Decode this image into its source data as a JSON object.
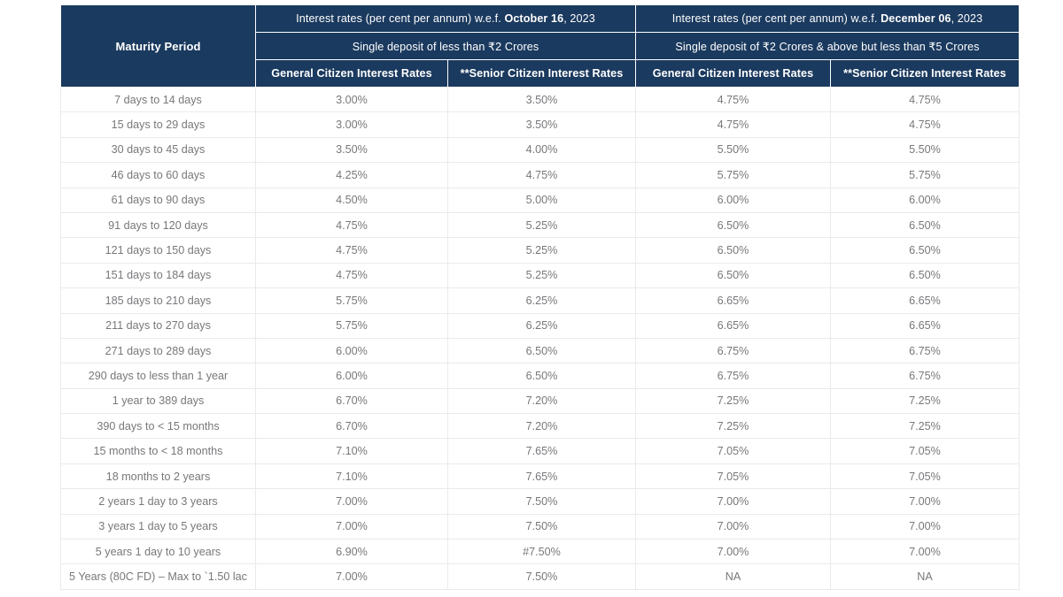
{
  "colors": {
    "header_bg": "#1b3a5f",
    "header_text": "#ffffff",
    "body_text": "#77787b",
    "row_border": "#e9eaec"
  },
  "header": {
    "maturity_period_label": "Maturity Period",
    "sections": [
      {
        "rate_title_prefix": "Interest rates (per cent per annum) w.e.f. ",
        "rate_title_date": "October 16",
        "rate_title_suffix": ", 2023",
        "deposit_label": "Single deposit of less than ₹2 Crores",
        "general_label": "General Citizen Interest Rates",
        "senior_label": "**Senior Citizen Interest Rates"
      },
      {
        "rate_title_prefix": "Interest rates (per cent per annum) w.e.f. ",
        "rate_title_date": "December 06",
        "rate_title_suffix": ", 2023",
        "deposit_label": "Single deposit of ₹2 Crores & above but less than ₹5 Crores",
        "general_label": "General Citizen Interest Rates",
        "senior_label": "**Senior Citizen Interest Rates"
      }
    ]
  },
  "rows": [
    {
      "maturity": "7 days to 14 days",
      "rates": [
        "3.00%",
        "3.50%",
        "4.75%",
        "4.75%"
      ]
    },
    {
      "maturity": "15 days to 29 days",
      "rates": [
        "3.00%",
        "3.50%",
        "4.75%",
        "4.75%"
      ]
    },
    {
      "maturity": "30 days to 45 days",
      "rates": [
        "3.50%",
        "4.00%",
        "5.50%",
        "5.50%"
      ]
    },
    {
      "maturity": "46 days to 60 days",
      "rates": [
        "4.25%",
        "4.75%",
        "5.75%",
        "5.75%"
      ]
    },
    {
      "maturity": "61 days to 90 days",
      "rates": [
        "4.50%",
        "5.00%",
        "6.00%",
        "6.00%"
      ]
    },
    {
      "maturity": "91 days to 120 days",
      "rates": [
        "4.75%",
        "5.25%",
        "6.50%",
        "6.50%"
      ]
    },
    {
      "maturity": "121 days to 150 days",
      "rates": [
        "4.75%",
        "5.25%",
        "6.50%",
        "6.50%"
      ]
    },
    {
      "maturity": "151 days to 184 days",
      "rates": [
        "4.75%",
        "5.25%",
        "6.50%",
        "6.50%"
      ]
    },
    {
      "maturity": "185 days to 210 days",
      "rates": [
        "5.75%",
        "6.25%",
        "6.65%",
        "6.65%"
      ]
    },
    {
      "maturity": "211 days to 270 days",
      "rates": [
        "5.75%",
        "6.25%",
        "6.65%",
        "6.65%"
      ]
    },
    {
      "maturity": "271 days to 289 days",
      "rates": [
        "6.00%",
        "6.50%",
        "6.75%",
        "6.75%"
      ]
    },
    {
      "maturity": "290 days to less than 1 year",
      "rates": [
        "6.00%",
        "6.50%",
        "6.75%",
        "6.75%"
      ]
    },
    {
      "maturity": "1 year to 389 days",
      "rates": [
        "6.70%",
        "7.20%",
        "7.25%",
        "7.25%"
      ]
    },
    {
      "maturity": "390 days to < 15 months",
      "rates": [
        "6.70%",
        "7.20%",
        "7.25%",
        "7.25%"
      ]
    },
    {
      "maturity": "15 months to < 18 months",
      "rates": [
        "7.10%",
        "7.65%",
        "7.05%",
        "7.05%"
      ]
    },
    {
      "maturity": "18 months to 2 years",
      "rates": [
        "7.10%",
        "7.65%",
        "7.05%",
        "7.05%"
      ]
    },
    {
      "maturity": "2 years 1 day to 3 years",
      "rates": [
        "7.00%",
        "7.50%",
        "7.00%",
        "7.00%"
      ]
    },
    {
      "maturity": "3 years 1 day to 5 years",
      "rates": [
        "7.00%",
        "7.50%",
        "7.00%",
        "7.00%"
      ]
    },
    {
      "maturity": "5 years 1 day to 10 years",
      "rates": [
        "6.90%",
        "#7.50%",
        "7.00%",
        "7.00%"
      ]
    },
    {
      "maturity": "5 Years (80C FD) – Max to `1.50 lac",
      "rates": [
        "7.00%",
        "7.50%",
        "NA",
        "NA"
      ]
    }
  ]
}
